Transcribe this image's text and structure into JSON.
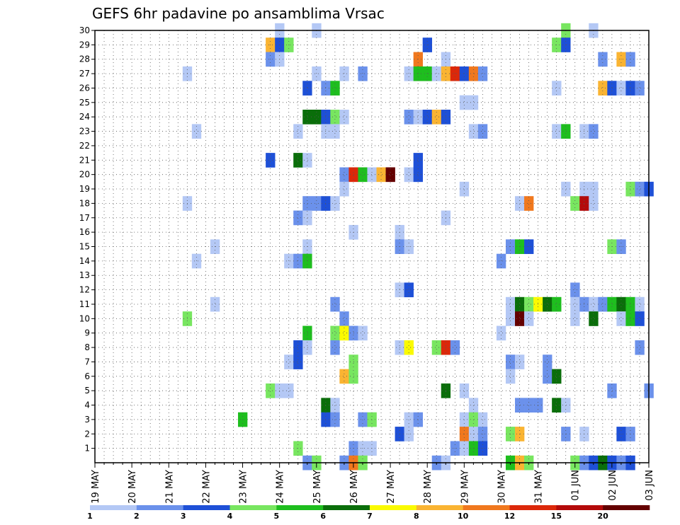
{
  "chart_data": {
    "type": "heatmap",
    "title": "GEFS 6hr padavine po ansamblima Vrsac",
    "xlabel": "",
    "ylabel": "",
    "x_tick_labels": [
      "19 MAY",
      "20 MAY",
      "21 MAY",
      "22 MAY",
      "23 MAY",
      "24 MAY",
      "25 MAY",
      "26 MAY",
      "27 MAY",
      "28 MAY",
      "29 MAY",
      "30 MAY",
      "31 MAY",
      "01 JUN",
      "02 JUN",
      "03 JUN"
    ],
    "x_steps_per_day": 4,
    "x_range_steps": [
      0,
      60
    ],
    "y_tick_labels": [
      "1",
      "2",
      "3",
      "4",
      "5",
      "6",
      "7",
      "8",
      "9",
      "10",
      "11",
      "12",
      "13",
      "14",
      "15",
      "16",
      "17",
      "18",
      "19",
      "20",
      "21",
      "22",
      "23",
      "24",
      "25",
      "26",
      "27",
      "28",
      "29",
      "30"
    ],
    "y_range": [
      0,
      30
    ],
    "grid": true,
    "legend": {
      "placement": "bottom",
      "labels": [
        "1",
        "2",
        "3",
        "4",
        "5",
        "6",
        "7",
        "8",
        "10",
        "12",
        "15",
        "20"
      ],
      "colors": [
        "#b4c8f5",
        "#6b91eb",
        "#1e50d7",
        "#78e660",
        "#1ebe1e",
        "#0a6e0a",
        "#fafa00",
        "#fab432",
        "#f0781e",
        "#dc280a",
        "#b40a0a",
        "#640000"
      ]
    },
    "cells": [
      [
        20,
        30,
        0
      ],
      [
        24,
        30,
        0
      ],
      [
        51,
        30,
        3
      ],
      [
        54,
        30,
        0
      ],
      [
        19,
        29,
        7
      ],
      [
        20,
        29,
        2
      ],
      [
        21,
        29,
        3
      ],
      [
        36,
        29,
        2
      ],
      [
        50,
        29,
        3
      ],
      [
        51,
        29,
        2
      ],
      [
        19,
        28,
        1
      ],
      [
        20,
        28,
        0
      ],
      [
        35,
        28,
        8
      ],
      [
        38,
        28,
        0
      ],
      [
        55,
        28,
        1
      ],
      [
        57,
        28,
        7
      ],
      [
        58,
        28,
        1
      ],
      [
        10,
        27,
        0
      ],
      [
        24,
        27,
        0
      ],
      [
        27,
        27,
        0
      ],
      [
        29,
        27,
        1
      ],
      [
        34,
        27,
        0
      ],
      [
        35,
        27,
        4
      ],
      [
        36,
        27,
        4
      ],
      [
        37,
        27,
        0
      ],
      [
        38,
        27,
        7
      ],
      [
        39,
        27,
        9
      ],
      [
        40,
        27,
        2
      ],
      [
        41,
        27,
        8
      ],
      [
        42,
        27,
        1
      ],
      [
        23,
        26,
        2
      ],
      [
        25,
        26,
        1
      ],
      [
        26,
        26,
        4
      ],
      [
        50,
        26,
        0
      ],
      [
        55,
        26,
        7
      ],
      [
        56,
        26,
        2
      ],
      [
        57,
        26,
        0
      ],
      [
        58,
        26,
        2
      ],
      [
        59,
        26,
        1
      ],
      [
        40,
        25,
        0
      ],
      [
        41,
        25,
        0
      ],
      [
        23,
        24,
        5
      ],
      [
        24,
        24,
        5
      ],
      [
        25,
        24,
        2
      ],
      [
        26,
        24,
        3
      ],
      [
        27,
        24,
        0
      ],
      [
        34,
        24,
        1
      ],
      [
        35,
        24,
        0
      ],
      [
        36,
        24,
        2
      ],
      [
        37,
        24,
        7
      ],
      [
        38,
        24,
        2
      ],
      [
        11,
        23,
        0
      ],
      [
        22,
        23,
        0
      ],
      [
        25,
        23,
        0
      ],
      [
        26,
        23,
        0
      ],
      [
        41,
        23,
        0
      ],
      [
        42,
        23,
        1
      ],
      [
        50,
        23,
        0
      ],
      [
        51,
        23,
        4
      ],
      [
        53,
        23,
        0
      ],
      [
        54,
        23,
        1
      ],
      [
        19,
        21,
        2
      ],
      [
        22,
        21,
        5
      ],
      [
        23,
        21,
        0
      ],
      [
        35,
        21,
        2
      ],
      [
        27,
        20,
        1
      ],
      [
        28,
        20,
        9
      ],
      [
        29,
        20,
        4
      ],
      [
        30,
        20,
        0
      ],
      [
        31,
        20,
        7
      ],
      [
        32,
        20,
        11
      ],
      [
        34,
        20,
        0
      ],
      [
        35,
        20,
        2
      ],
      [
        27,
        19,
        0
      ],
      [
        40,
        19,
        0
      ],
      [
        51,
        19,
        0
      ],
      [
        53,
        19,
        0
      ],
      [
        54,
        19,
        0
      ],
      [
        58,
        19,
        3
      ],
      [
        59,
        19,
        1
      ],
      [
        60,
        19,
        2
      ],
      [
        10,
        18,
        0
      ],
      [
        23,
        18,
        1
      ],
      [
        24,
        18,
        1
      ],
      [
        25,
        18,
        2
      ],
      [
        26,
        18,
        0
      ],
      [
        46,
        18,
        0
      ],
      [
        47,
        18,
        8
      ],
      [
        52,
        18,
        3
      ],
      [
        53,
        18,
        10
      ],
      [
        54,
        18,
        0
      ],
      [
        22,
        17,
        1
      ],
      [
        23,
        17,
        0
      ],
      [
        38,
        17,
        0
      ],
      [
        28,
        16,
        0
      ],
      [
        33,
        16,
        0
      ],
      [
        13,
        15,
        0
      ],
      [
        23,
        15,
        0
      ],
      [
        33,
        15,
        1
      ],
      [
        34,
        15,
        0
      ],
      [
        45,
        15,
        1
      ],
      [
        46,
        15,
        4
      ],
      [
        47,
        15,
        2
      ],
      [
        56,
        15,
        3
      ],
      [
        57,
        15,
        1
      ],
      [
        11,
        14,
        0
      ],
      [
        21,
        14,
        0
      ],
      [
        22,
        14,
        1
      ],
      [
        23,
        14,
        4
      ],
      [
        44,
        14,
        1
      ],
      [
        33,
        12,
        0
      ],
      [
        34,
        12,
        2
      ],
      [
        52,
        12,
        1
      ],
      [
        13,
        11,
        0
      ],
      [
        26,
        11,
        1
      ],
      [
        45,
        11,
        0
      ],
      [
        46,
        11,
        5
      ],
      [
        47,
        11,
        3
      ],
      [
        48,
        11,
        6
      ],
      [
        49,
        11,
        5
      ],
      [
        50,
        11,
        4
      ],
      [
        52,
        11,
        0
      ],
      [
        53,
        11,
        1
      ],
      [
        54,
        11,
        0
      ],
      [
        55,
        11,
        1
      ],
      [
        56,
        11,
        4
      ],
      [
        57,
        11,
        5
      ],
      [
        58,
        11,
        4
      ],
      [
        59,
        11,
        0
      ],
      [
        10,
        10,
        3
      ],
      [
        27,
        10,
        1
      ],
      [
        45,
        10,
        0
      ],
      [
        46,
        10,
        11
      ],
      [
        47,
        10,
        0
      ],
      [
        52,
        10,
        0
      ],
      [
        54,
        10,
        5
      ],
      [
        57,
        10,
        0
      ],
      [
        58,
        10,
        4
      ],
      [
        59,
        10,
        2
      ],
      [
        23,
        9,
        4
      ],
      [
        26,
        9,
        3
      ],
      [
        27,
        9,
        6
      ],
      [
        28,
        9,
        1
      ],
      [
        29,
        9,
        0
      ],
      [
        44,
        9,
        0
      ],
      [
        22,
        8,
        2
      ],
      [
        23,
        8,
        0
      ],
      [
        26,
        8,
        1
      ],
      [
        33,
        8,
        0
      ],
      [
        34,
        8,
        6
      ],
      [
        37,
        8,
        3
      ],
      [
        38,
        8,
        9
      ],
      [
        39,
        8,
        1
      ],
      [
        59,
        8,
        1
      ],
      [
        21,
        7,
        0
      ],
      [
        22,
        7,
        2
      ],
      [
        28,
        7,
        3
      ],
      [
        45,
        7,
        1
      ],
      [
        46,
        7,
        0
      ],
      [
        49,
        7,
        1
      ],
      [
        27,
        6,
        7
      ],
      [
        28,
        6,
        3
      ],
      [
        45,
        6,
        0
      ],
      [
        49,
        6,
        1
      ],
      [
        50,
        6,
        5
      ],
      [
        19,
        5,
        3
      ],
      [
        20,
        5,
        0
      ],
      [
        21,
        5,
        0
      ],
      [
        38,
        5,
        5
      ],
      [
        40,
        5,
        0
      ],
      [
        56,
        5,
        1
      ],
      [
        60,
        5,
        1
      ],
      [
        25,
        4,
        5
      ],
      [
        26,
        4,
        0
      ],
      [
        41,
        4,
        0
      ],
      [
        46,
        4,
        1
      ],
      [
        47,
        4,
        1
      ],
      [
        48,
        4,
        1
      ],
      [
        50,
        4,
        5
      ],
      [
        51,
        4,
        0
      ],
      [
        16,
        3,
        4
      ],
      [
        25,
        3,
        2
      ],
      [
        26,
        3,
        1
      ],
      [
        29,
        3,
        1
      ],
      [
        30,
        3,
        3
      ],
      [
        34,
        3,
        0
      ],
      [
        35,
        3,
        1
      ],
      [
        40,
        3,
        0
      ],
      [
        41,
        3,
        3
      ],
      [
        42,
        3,
        0
      ],
      [
        33,
        2,
        2
      ],
      [
        34,
        2,
        0
      ],
      [
        40,
        2,
        8
      ],
      [
        41,
        2,
        0
      ],
      [
        42,
        2,
        1
      ],
      [
        45,
        2,
        3
      ],
      [
        46,
        2,
        7
      ],
      [
        51,
        2,
        1
      ],
      [
        53,
        2,
        0
      ],
      [
        57,
        2,
        2
      ],
      [
        58,
        2,
        1
      ],
      [
        22,
        1,
        3
      ],
      [
        28,
        1,
        1
      ],
      [
        29,
        1,
        0
      ],
      [
        30,
        1,
        0
      ],
      [
        39,
        1,
        1
      ],
      [
        40,
        1,
        0
      ],
      [
        41,
        1,
        4
      ],
      [
        42,
        1,
        2
      ],
      [
        23,
        0,
        1
      ],
      [
        24,
        0,
        3
      ],
      [
        27,
        0,
        1
      ],
      [
        28,
        0,
        8
      ],
      [
        29,
        0,
        3
      ],
      [
        37,
        0,
        1
      ],
      [
        38,
        0,
        0
      ],
      [
        45,
        0,
        4
      ],
      [
        46,
        0,
        7
      ],
      [
        47,
        0,
        3
      ],
      [
        52,
        0,
        3
      ],
      [
        53,
        0,
        1
      ],
      [
        54,
        0,
        2
      ],
      [
        55,
        0,
        5
      ],
      [
        56,
        0,
        2
      ],
      [
        57,
        0,
        1
      ],
      [
        58,
        0,
        2
      ]
    ]
  }
}
